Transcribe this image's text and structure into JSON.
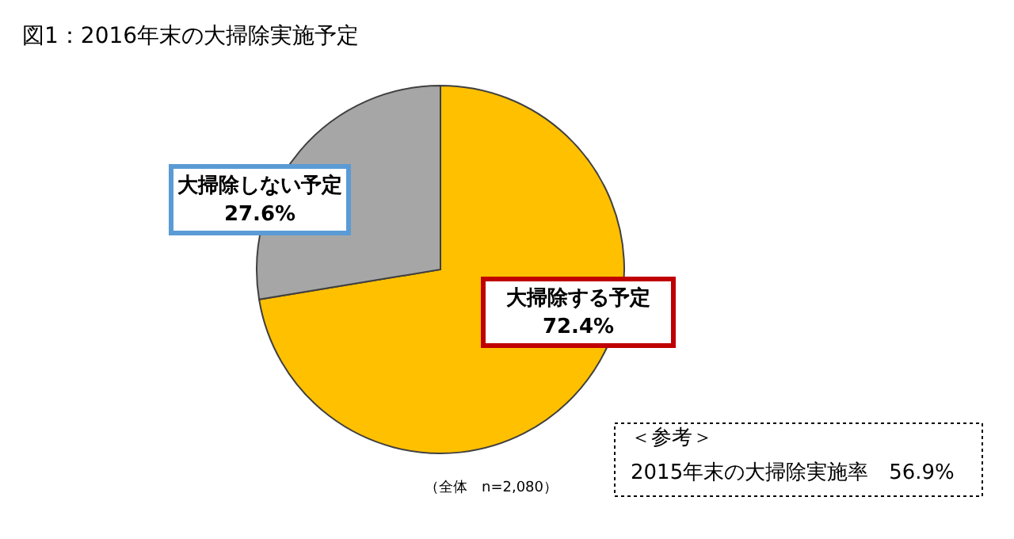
{
  "chart_data": {
    "type": "pie",
    "title": "図1：2016年末の大掃除実施予定",
    "categories": [
      "大掃除する予定",
      "大掃除しない予定"
    ],
    "values": [
      72.4,
      27.6
    ],
    "value_labels": [
      "72.4%",
      "27.6%"
    ],
    "colors": [
      "#ffc000",
      "#a6a6a6"
    ],
    "legend": false,
    "annotations": [
      "（全体　n=2,080）",
      "＜参考＞",
      "2015年末の大掃除実施率　56.9%"
    ]
  }
}
